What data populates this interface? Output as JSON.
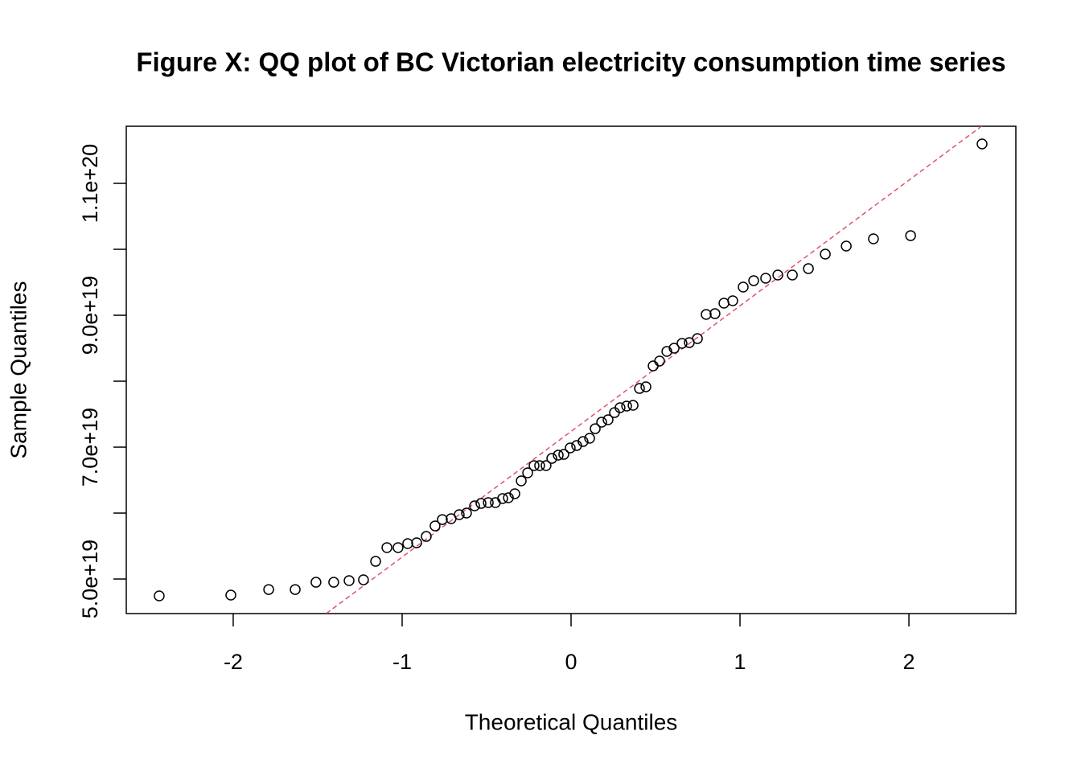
{
  "chart_data": {
    "type": "scatter",
    "title": "Figure X: QQ plot of BC Victorian electricity consumption time series",
    "x_label": "Theoretical Quantiles",
    "y_label": "Sample Quantiles",
    "xlim": [
      -2.633,
      2.633
    ],
    "ylim": [
      4.476e+19,
      1.1866e+20
    ],
    "xticks": [
      -2,
      -1,
      0,
      1,
      2
    ],
    "yticks": [
      {
        "value": 5e+19,
        "label": "5.0e+19"
      },
      {
        "value": 6e+19,
        "label": null
      },
      {
        "value": 7e+19,
        "label": "7.0e+19"
      },
      {
        "value": 8e+19,
        "label": null
      },
      {
        "value": 9e+19,
        "label": "9.0e+19"
      },
      {
        "value": 1e+20,
        "label": null
      },
      {
        "value": 1.1e+20,
        "label": "1.1e+20"
      }
    ],
    "color": "#000000",
    "x": [
      -2.438,
      -2.014,
      -1.79,
      -1.633,
      -1.51,
      -1.405,
      -1.314,
      -1.229,
      -1.157,
      -1.09,
      -1.024,
      -0.967,
      -0.914,
      -0.857,
      -0.805,
      -0.762,
      -0.71,
      -0.662,
      -0.619,
      -0.571,
      -0.533,
      -0.49,
      -0.448,
      -0.405,
      -0.371,
      -0.333,
      -0.295,
      -0.257,
      -0.219,
      -0.186,
      -0.148,
      -0.114,
      -0.076,
      -0.043,
      -0.005,
      0.033,
      0.071,
      0.11,
      0.143,
      0.181,
      0.219,
      0.257,
      0.29,
      0.329,
      0.367,
      0.405,
      0.443,
      0.486,
      0.524,
      0.567,
      0.61,
      0.657,
      0.7,
      0.748,
      0.8,
      0.852,
      0.905,
      0.957,
      1.019,
      1.081,
      1.152,
      1.224,
      1.31,
      1.405,
      1.505,
      1.629,
      1.79,
      2.01,
      2.433
    ],
    "values": [
      4.744e+19,
      4.756e+19,
      4.841e+19,
      4.841e+19,
      4.951e+19,
      4.951e+19,
      4.976e+19,
      4.988e+19,
      5.268e+19,
      5.476e+19,
      5.476e+19,
      5.537e+19,
      5.549e+19,
      5.646e+19,
      5.805e+19,
      5.902e+19,
      5.915e+19,
      5.976e+19,
      6e+19,
      6.11e+19,
      6.146e+19,
      6.159e+19,
      6.159e+19,
      6.22e+19,
      6.232e+19,
      6.293e+19,
      6.488e+19,
      6.61e+19,
      6.72e+19,
      6.72e+19,
      6.72e+19,
      6.829e+19,
      6.878e+19,
      6.89e+19,
      6.988e+19,
      7.024e+19,
      7.085e+19,
      7.134e+19,
      7.28e+19,
      7.378e+19,
      7.415e+19,
      7.524e+19,
      7.598e+19,
      7.622e+19,
      7.634e+19,
      7.89e+19,
      7.915e+19,
      8.232e+19,
      8.305e+19,
      8.451e+19,
      8.5e+19,
      8.573e+19,
      8.585e+19,
      8.646e+19,
      9.012e+19,
      9.024e+19,
      9.183e+19,
      9.22e+19,
      9.427e+19,
      9.524e+19,
      9.561e+19,
      9.61e+19,
      9.61e+19,
      9.707e+19,
      9.927e+19,
      1.0049e+20,
      1.0159e+20,
      1.0207e+20,
      1.1598e+20
    ],
    "reference_line": {
      "slope": 1.905e+19,
      "intercept": 7.238e+19,
      "color": "#DF536B"
    }
  }
}
